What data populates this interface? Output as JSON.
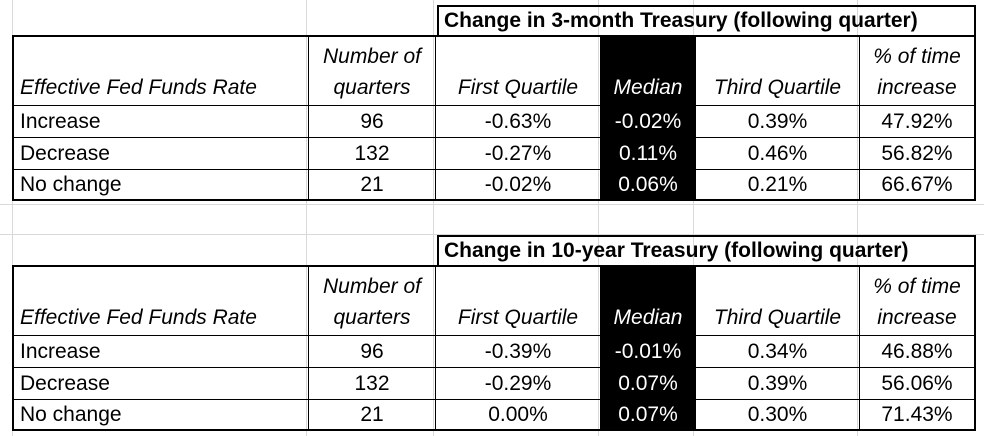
{
  "tables": [
    {
      "title": "Change in 3-month Treasury (following quarter)",
      "headers": {
        "col1": "Effective Fed Funds Rate",
        "col2_line1": "Number of",
        "col2_line2": "quarters",
        "col3": "First Quartile",
        "col4": "Median",
        "col5": "Third Quartile",
        "col6_line1": "% of time",
        "col6_line2": "increase"
      },
      "rows": [
        {
          "label": "Increase",
          "quarters": "96",
          "first": "-0.63%",
          "median": "-0.02%",
          "third": "0.39%",
          "pct": "47.92%"
        },
        {
          "label": "Decrease",
          "quarters": "132",
          "first": "-0.27%",
          "median": "0.11%",
          "third": "0.46%",
          "pct": "56.82%"
        },
        {
          "label": "No change",
          "quarters": "21",
          "first": "-0.02%",
          "median": "0.06%",
          "third": "0.21%",
          "pct": "66.67%"
        }
      ]
    },
    {
      "title": "Change in 10-year Treasury (following quarter)",
      "headers": {
        "col1": "Effective Fed Funds Rate",
        "col2_line1": "Number of",
        "col2_line2": "quarters",
        "col3": "First Quartile",
        "col4": "Median",
        "col5": "Third Quartile",
        "col6_line1": "% of time",
        "col6_line2": "increase"
      },
      "rows": [
        {
          "label": "Increase",
          "quarters": "96",
          "first": "-0.39%",
          "median": "-0.01%",
          "third": "0.34%",
          "pct": "46.88%"
        },
        {
          "label": "Decrease",
          "quarters": "132",
          "first": "-0.29%",
          "median": "0.07%",
          "third": "0.39%",
          "pct": "56.06%"
        },
        {
          "label": "No change",
          "quarters": "21",
          "first": "0.00%",
          "median": "0.07%",
          "third": "0.30%",
          "pct": "71.43%"
        }
      ]
    }
  ]
}
